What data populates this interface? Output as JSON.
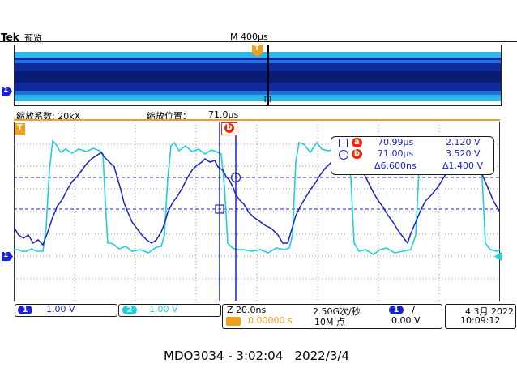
{
  "header": {
    "brand": "Tek",
    "mode": "预览",
    "timebase": "M 400µs"
  },
  "overview": {
    "trigger_marker": "T",
    "ch1_marker": "1",
    "window_marker": "[ ]"
  },
  "zoom": {
    "factor_label": "缩放系数: 20kX",
    "position_label": "缩放位置：",
    "position_value": "71.0µs"
  },
  "markers": {
    "trigger": "T",
    "ch1_ground": "1",
    "cursor_b": "b",
    "cursor_a": "a"
  },
  "cursor_readout": {
    "a_time": "70.99µs",
    "a_volt": "2.120 V",
    "b_time": "71.00µs",
    "b_volt": "3.520 V",
    "delta_time": "Δ6.600ns",
    "delta_volt": "Δ1.400 V",
    "a_label": "a",
    "b_label": "b"
  },
  "status": {
    "ch1_num": "1",
    "ch1_scale": "1.00 V",
    "ch2_num": "2",
    "ch2_scale": "1.00 V",
    "zoom_time": "Z 20.0ns",
    "trig_offset": "0.00000 s",
    "sample_rate": "2.50G次/秒",
    "record_length": "10M 点",
    "trig_source": "1",
    "trig_slope": "∕",
    "trig_level": "0.00 V",
    "date": "4 3月 2022",
    "time": "10:09:12"
  },
  "caption": "MDO3034 - 3:02:04   2022/3/4",
  "colors": {
    "ch1": "#1a22c9",
    "ch2": "#1fd0d8",
    "trigger": "#f0a020",
    "cursor": "#e03010",
    "grid": "#9a9a9a"
  }
}
